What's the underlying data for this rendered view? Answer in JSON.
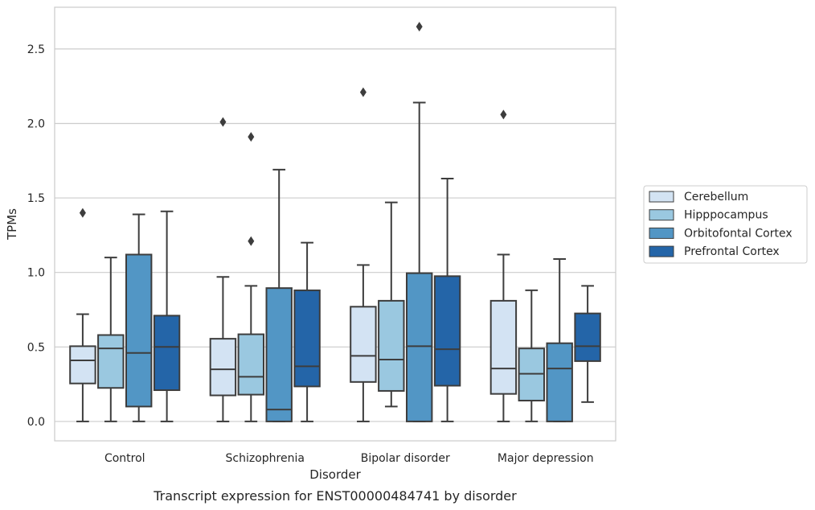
{
  "caption": "Transcript expression for ENST00000484741 by disorder",
  "chart_data": {
    "type": "box",
    "xlabel": "Disorder",
    "ylabel": "TPMs",
    "ylim": [
      -0.13,
      2.78
    ],
    "yticks": [
      "0.0",
      "0.5",
      "1.0",
      "1.5",
      "2.0",
      "2.5"
    ],
    "grid": "horizontal",
    "legend_position": "right",
    "categories": [
      "Control",
      "Schizophrenia",
      "Bipolar disorder",
      "Major depression"
    ],
    "series": [
      {
        "name": "Cerebellum",
        "color": "#d3e3f3",
        "boxes": [
          {
            "whislo": 0.0,
            "q1": 0.255,
            "med": 0.41,
            "q3": 0.505,
            "whishi": 0.72,
            "fliers": [
              1.4
            ]
          },
          {
            "whislo": 0.0,
            "q1": 0.175,
            "med": 0.35,
            "q3": 0.555,
            "whishi": 0.97,
            "fliers": [
              2.01
            ]
          },
          {
            "whislo": 0.0,
            "q1": 0.265,
            "med": 0.44,
            "q3": 0.77,
            "whishi": 1.05,
            "fliers": [
              2.21
            ]
          },
          {
            "whislo": 0.0,
            "q1": 0.185,
            "med": 0.355,
            "q3": 0.81,
            "whishi": 1.12,
            "fliers": [
              2.06
            ]
          }
        ]
      },
      {
        "name": "Hipppocampus",
        "color": "#9ac8e0",
        "boxes": [
          {
            "whislo": 0.0,
            "q1": 0.225,
            "med": 0.49,
            "q3": 0.58,
            "whishi": 1.1,
            "fliers": []
          },
          {
            "whislo": 0.0,
            "q1": 0.18,
            "med": 0.3,
            "q3": 0.585,
            "whishi": 0.91,
            "fliers": [
              1.91,
              1.21
            ]
          },
          {
            "whislo": 0.1,
            "q1": 0.205,
            "med": 0.415,
            "q3": 0.81,
            "whishi": 1.47,
            "fliers": []
          },
          {
            "whislo": 0.0,
            "q1": 0.14,
            "med": 0.32,
            "q3": 0.49,
            "whishi": 0.88,
            "fliers": []
          }
        ]
      },
      {
        "name": "Orbitofontal Cortex",
        "color": "#5296c5",
        "boxes": [
          {
            "whislo": 0.0,
            "q1": 0.1,
            "med": 0.46,
            "q3": 1.12,
            "whishi": 1.39,
            "fliers": []
          },
          {
            "whislo": 0.0,
            "q1": 0.0,
            "med": 0.08,
            "q3": 0.895,
            "whishi": 1.69,
            "fliers": []
          },
          {
            "whislo": 0.0,
            "q1": 0.0,
            "med": 0.505,
            "q3": 0.995,
            "whishi": 2.14,
            "fliers": [
              2.65
            ]
          },
          {
            "whislo": 0.0,
            "q1": 0.0,
            "med": 0.355,
            "q3": 0.525,
            "whishi": 1.09,
            "fliers": []
          }
        ]
      },
      {
        "name": "Prefrontal Cortex",
        "color": "#2465a8",
        "boxes": [
          {
            "whislo": 0.0,
            "q1": 0.21,
            "med": 0.5,
            "q3": 0.71,
            "whishi": 1.41,
            "fliers": []
          },
          {
            "whislo": 0.0,
            "q1": 0.235,
            "med": 0.37,
            "q3": 0.88,
            "whishi": 1.2,
            "fliers": []
          },
          {
            "whislo": 0.0,
            "q1": 0.24,
            "med": 0.485,
            "q3": 0.975,
            "whishi": 1.63,
            "fliers": []
          },
          {
            "whislo": 0.13,
            "q1": 0.405,
            "med": 0.505,
            "q3": 0.725,
            "whishi": 0.91,
            "fliers": []
          }
        ]
      }
    ]
  }
}
